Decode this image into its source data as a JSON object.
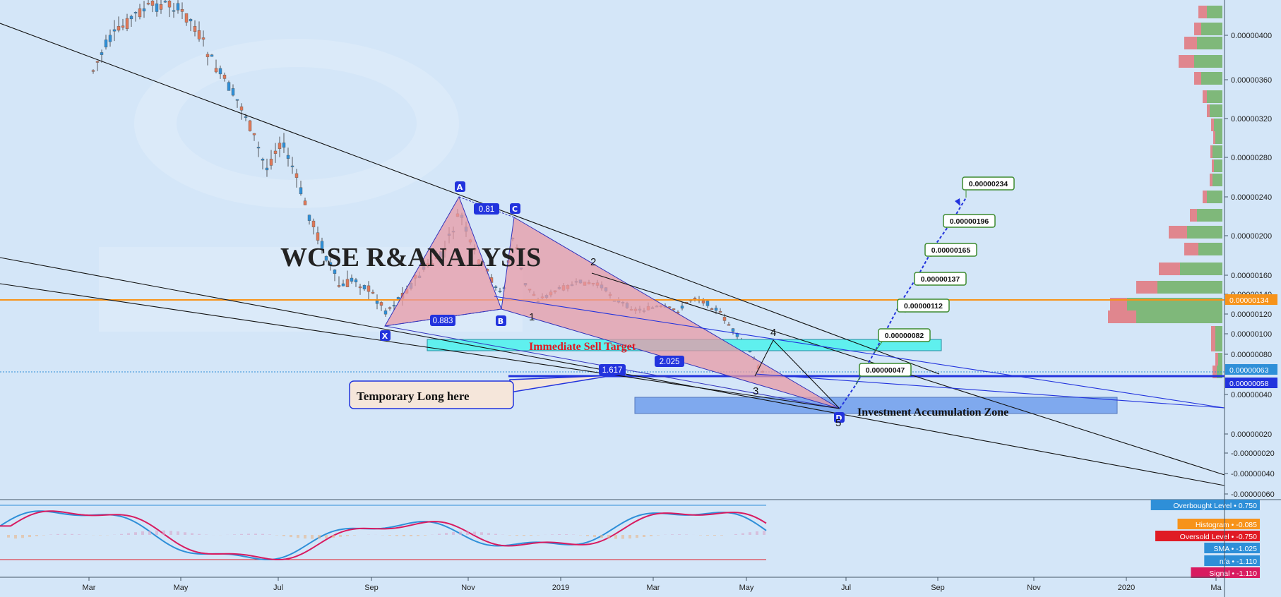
{
  "colors": {
    "background": "#d4e6f8",
    "up_candle": "#2e8fd8",
    "down_candle": "#e07858",
    "trendline": "#111111",
    "blue_line": "#2233dd",
    "orange_line": "#f7931a",
    "pattern_fill": "#e89aa6",
    "pattern_stroke": "#3333bb",
    "sell_zone": "#5ff0ee",
    "accum_zone": "#7fa9ee",
    "vp_green": "#7fb87a",
    "vp_red": "#e0868e"
  },
  "watermark": "WCSE R&ANALYSIS",
  "annotations": {
    "immediate_sell_target": "Immediate Sell Target",
    "investment_zone": "Investment Accumulation Zone",
    "temporary_long": "Temporary Long here"
  },
  "pattern_points": [
    "X",
    "A",
    "B",
    "C",
    "D"
  ],
  "pattern_ratios": [
    "0.81",
    "0.883",
    "1.617",
    "2.025"
  ],
  "wave_labels": [
    "1",
    "2",
    "3",
    "4",
    "5"
  ],
  "price_targets": [
    "0.00000047",
    "0.00000082",
    "0.00000112",
    "0.00000137",
    "0.00000165",
    "0.00000196",
    "0.00000234"
  ],
  "price_tags": [
    {
      "text": "0.00000134",
      "color": "#f7931a"
    },
    {
      "text": "0.00000063",
      "color": "#2e8fd8"
    },
    {
      "text": "0.00000058",
      "color": "#2233dd"
    }
  ],
  "y_axis": {
    "ticks": [
      "0.00000400",
      "0.00000360",
      "0.00000320",
      "0.00000280",
      "0.00000240",
      "0.00000200",
      "0.00000160",
      "0.00000140",
      "0.00000120",
      "0.00000100",
      "0.00000080",
      "0.00000040",
      "0.00000020",
      "-0.00000020",
      "-0.00000040",
      "-0.00000060"
    ]
  },
  "x_axis": {
    "labels": [
      "Mar",
      "May",
      "Jul",
      "Sep",
      "Nov",
      "2019",
      "Mar",
      "May",
      "Jul",
      "Sep",
      "Nov",
      "2020",
      "Ma"
    ]
  },
  "indicator": {
    "legend": [
      {
        "label": "Overbought Level",
        "value": "0.750",
        "color": "#2e8fd8"
      },
      {
        "label": "Histogram",
        "value": "-0.085",
        "color": "#f7931a"
      },
      {
        "label": "Oversold Level",
        "value": "-0.750",
        "color": "#e01b24"
      },
      {
        "label": "SMA",
        "value": "-1.025",
        "color": "#2e8fd8"
      },
      {
        "label": "n/a",
        "value": "-1.110",
        "color": "#2e8fd8"
      },
      {
        "label": "Signal",
        "value": "-1.110",
        "color": "#d81b60"
      }
    ]
  },
  "chart_data": {
    "type": "candlestick",
    "title": "",
    "pattern": "harmonic XABCD",
    "pattern_points": [
      {
        "label": "X",
        "date": "2018-09",
        "price": 1.1e-06
      },
      {
        "label": "A",
        "date": "2018-10",
        "price": 2.4e-06
      },
      {
        "label": "B",
        "date": "2018-11",
        "price": 1.21e-06
      },
      {
        "label": "C",
        "date": "2018-11",
        "price": 2.18e-06
      },
      {
        "label": "D",
        "date": "2019-06",
        "price": 2.4e-07
      }
    ],
    "ratios": [
      0.81,
      0.883,
      1.617,
      2.025
    ],
    "targets": [
      4.7e-07,
      8.2e-07,
      1.12e-06,
      1.37e-06,
      1.65e-06,
      1.96e-06,
      2.34e-06
    ],
    "zones": [
      {
        "name": "Immediate Sell Target",
        "low": 7.9e-07,
        "high": 9.1e-07
      },
      {
        "name": "Investment Accumulation Zone",
        "low": 1.8e-07,
        "high": 3.5e-07
      }
    ],
    "horizontal_lines": [
      1.34e-06,
      5.8e-07
    ],
    "ylim": [
      -6.5e-07,
      4.4e-06
    ]
  }
}
